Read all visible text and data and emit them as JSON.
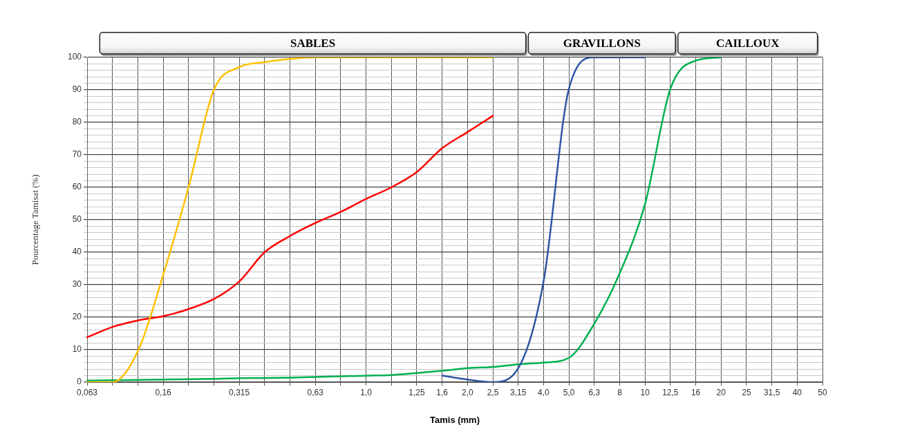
{
  "chart_data": {
    "type": "line",
    "xlabel": "Tamis (mm)",
    "ylabel": "Pourcentage Tamisat (%)",
    "categories": [
      "0,063",
      null,
      null,
      "0,16",
      null,
      null,
      "0,315",
      null,
      null,
      "0,63",
      null,
      "1,0",
      null,
      "1,25",
      "1,6",
      "2,0",
      "2,5",
      "3,15",
      "4,0",
      "5,0",
      "6,3",
      "8",
      "10",
      "12,5",
      "16",
      "20",
      "25",
      "31,5",
      "40",
      "50"
    ],
    "series": [
      {
        "color": "#ffc000",
        "values": [
          0,
          0,
          9.5,
          33,
          60,
          90,
          97,
          98.5,
          99.5,
          100,
          100,
          100,
          100,
          100,
          100,
          100,
          100,
          null,
          null,
          null,
          null,
          null,
          null,
          null,
          null,
          null,
          null,
          null,
          null,
          null
        ]
      },
      {
        "color": "#ff0000",
        "values": [
          13.8,
          17,
          19,
          20.3,
          22.5,
          25.6,
          31,
          40,
          45,
          49,
          52.4,
          56.4,
          60,
          64.7,
          72,
          77,
          82,
          null,
          null,
          null,
          null,
          null,
          null,
          null,
          null,
          null,
          null,
          null,
          null,
          null
        ]
      },
      {
        "color": "#2e55a4",
        "values": [
          null,
          null,
          null,
          null,
          null,
          null,
          null,
          null,
          null,
          null,
          null,
          null,
          null,
          null,
          2,
          0.8,
          0,
          4.3,
          31,
          90.3,
          100,
          100,
          100,
          null,
          null,
          null,
          null,
          null,
          null,
          null
        ]
      },
      {
        "color": "#00b050",
        "values": [
          0.5,
          0.6,
          0.7,
          0.8,
          0.9,
          1,
          1.2,
          1.3,
          1.4,
          1.6,
          1.8,
          2,
          2.2,
          2.8,
          3.5,
          4.3,
          4.7,
          5.5,
          6,
          7.5,
          18,
          33.5,
          54.8,
          90.3,
          99,
          100,
          null,
          null,
          null,
          null
        ]
      }
    ],
    "ylim": [
      0,
      100
    ],
    "yticks": [
      0,
      {
        "value": 2,
        "label": null
      },
      {
        "value": 4,
        "label": null
      },
      {
        "value": 6,
        "label": null
      },
      {
        "value": 8,
        "label": null
      },
      10,
      {
        "value": 12,
        "label": null
      },
      {
        "value": 14,
        "label": null
      },
      {
        "value": 16,
        "label": null
      },
      {
        "value": 18,
        "label": null
      },
      20,
      {
        "value": 22,
        "label": null
      },
      {
        "value": 24,
        "label": null
      },
      {
        "value": 26,
        "label": null
      },
      {
        "value": 28,
        "label": null
      },
      30,
      {
        "value": 32,
        "label": null
      },
      {
        "value": 34,
        "label": null
      },
      {
        "value": 36,
        "label": null
      },
      {
        "value": 38,
        "label": null
      },
      40,
      {
        "value": 42,
        "label": null
      },
      {
        "value": 44,
        "label": null
      },
      {
        "value": 46,
        "label": null
      },
      {
        "value": 48,
        "label": null
      },
      50,
      {
        "value": 52,
        "label": null
      },
      {
        "value": 54,
        "label": null
      },
      {
        "value": 56,
        "label": null
      },
      {
        "value": 58,
        "label": null
      },
      60,
      {
        "value": 62,
        "label": null
      },
      {
        "value": 64,
        "label": null
      },
      {
        "value": 66,
        "label": null
      },
      {
        "value": 68,
        "label": null
      },
      70,
      {
        "value": 72,
        "label": null
      },
      {
        "value": 74,
        "label": null
      },
      {
        "value": 76,
        "label": null
      },
      {
        "value": 78,
        "label": null
      },
      80,
      {
        "value": 82,
        "label": null
      },
      {
        "value": 84,
        "label": null
      },
      {
        "value": 86,
        "label": null
      },
      {
        "value": 88,
        "label": null
      },
      90,
      {
        "value": 92,
        "label": null
      },
      {
        "value": 94,
        "label": null
      },
      {
        "value": 96,
        "label": null
      },
      {
        "value": 98,
        "label": null
      },
      100
    ],
    "annotations": [
      "SABLES",
      "GRAVILLONS",
      "CAILLOUX"
    ],
    "grid": true,
    "legend": false,
    "marker": "none",
    "line_style": "solid"
  }
}
